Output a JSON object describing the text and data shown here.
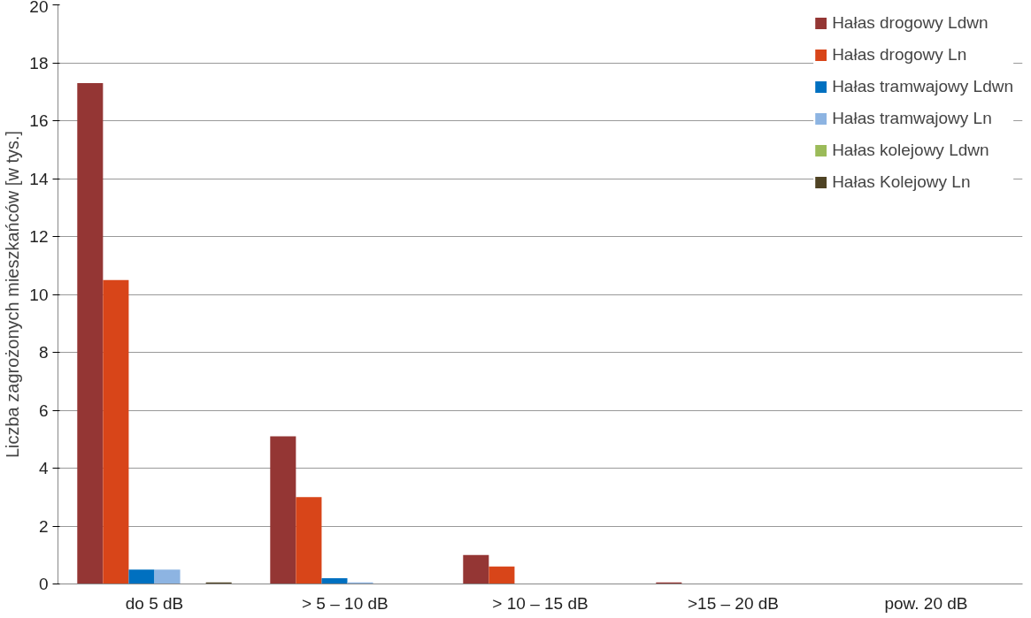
{
  "chart_data": {
    "type": "bar",
    "ylabel": "Liczba zagrożonych mieszkańców [w tys.]",
    "categories": [
      "do 5 dB",
      "> 5 – 10  dB",
      "> 10 – 15 dB",
      ">15 – 20 dB",
      "pow. 20 dB"
    ],
    "series": [
      {
        "name": "Hałas drogowy Ldwn",
        "color": "#943634",
        "values": [
          17.3,
          5.1,
          1.0,
          0.05,
          0
        ]
      },
      {
        "name": "Hałas drogowy Ln",
        "color": "#d84519",
        "values": [
          10.5,
          3.0,
          0.6,
          0,
          0
        ]
      },
      {
        "name": "Hałas tramwajowy Ldwn",
        "color": "#0070c0",
        "values": [
          0.5,
          0.2,
          0,
          0,
          0
        ]
      },
      {
        "name": "Hałas tramwajowy Ln",
        "color": "#8db4e2",
        "values": [
          0.5,
          0.05,
          0,
          0,
          0
        ]
      },
      {
        "name": "Hałas kolejowy Ldwn",
        "color": "#9bbb59",
        "values": [
          0,
          0,
          0,
          0,
          0
        ]
      },
      {
        "name": "Hałas Kolejowy Ln",
        "color": "#4f4324",
        "values": [
          0.05,
          0,
          0,
          0,
          0
        ]
      }
    ],
    "ylim": [
      0,
      20
    ],
    "yticks": [
      0,
      2,
      4,
      6,
      8,
      10,
      12,
      14,
      16,
      18,
      20
    ],
    "grid": "y",
    "legend": "top right"
  }
}
